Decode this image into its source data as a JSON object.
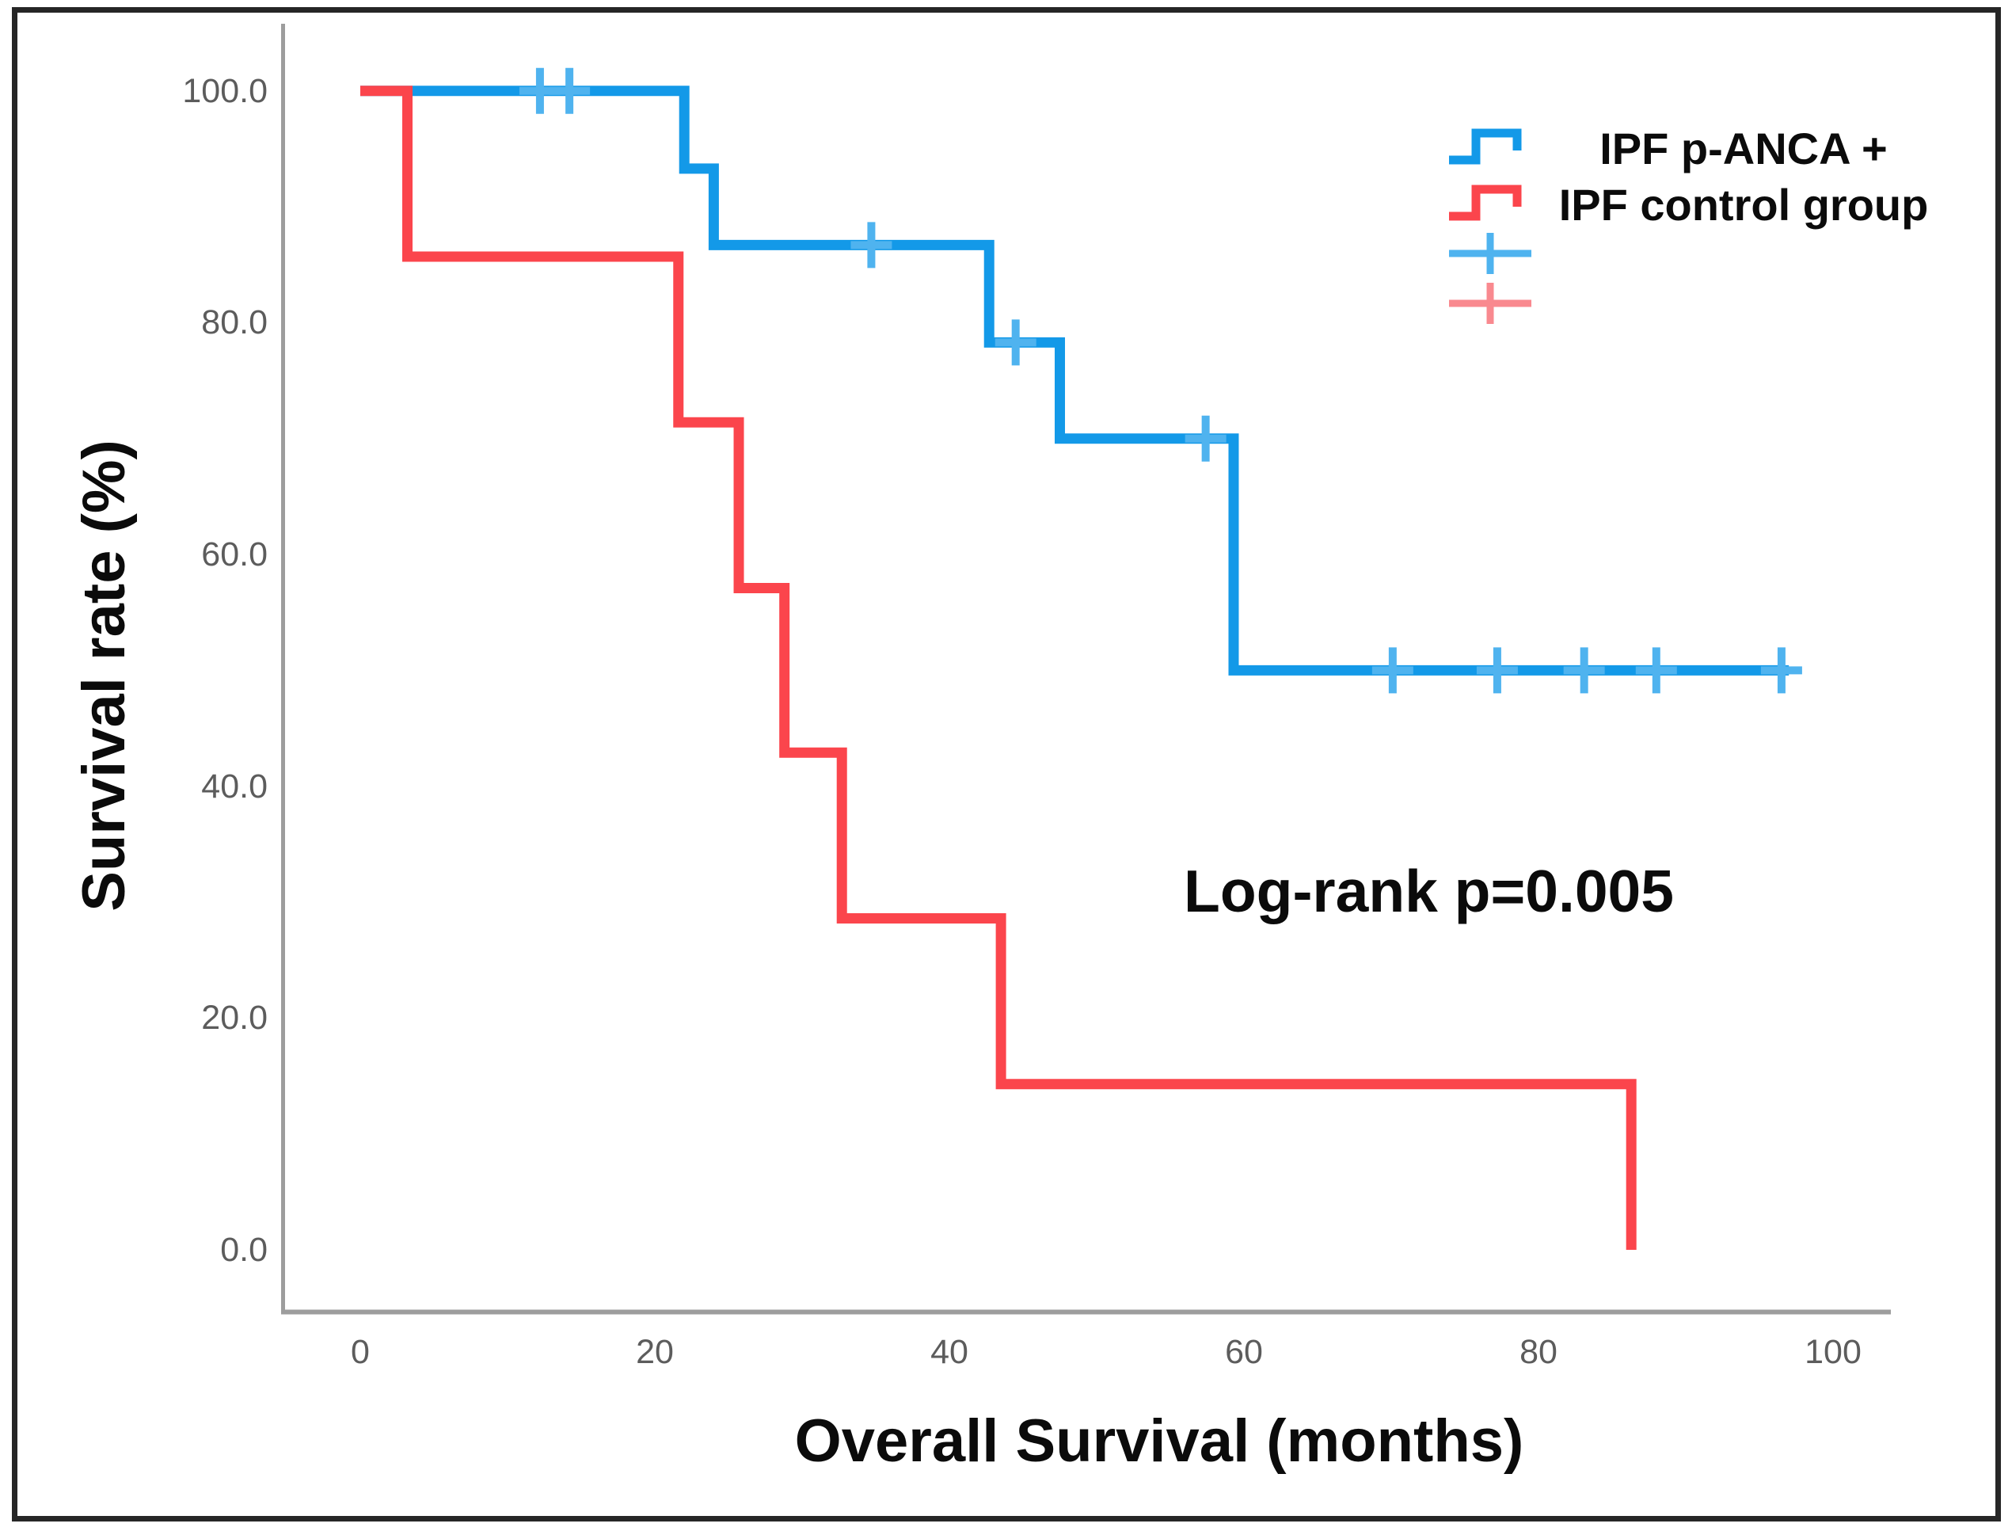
{
  "figure": {
    "background": "#ffffff",
    "border_color": "#262626",
    "axis_color": "#9d9d9d",
    "tick_label_color": "#5c5c5c",
    "text_color": "#0b0b0b"
  },
  "chart_data": {
    "type": "line",
    "subtype": "kaplan_meier_step",
    "title": "",
    "xlabel": "Overall Survival (months)",
    "ylabel": "Survival rate (%)",
    "annotation": "Log-rank p=0.005",
    "x_ticks": [
      "0",
      "20",
      "40",
      "60",
      "80",
      "100"
    ],
    "x_tick_values": [
      0,
      20,
      40,
      60,
      80,
      100
    ],
    "y_ticks": [
      "100.0",
      "80.0",
      "60.0",
      "40.0",
      "20.0",
      "0.0"
    ],
    "y_tick_values": [
      100,
      80,
      60,
      40,
      20,
      0
    ],
    "xlim": [
      0,
      105
    ],
    "ylim": [
      0,
      100
    ],
    "grid": false,
    "legend_position": "top-right",
    "series": [
      {
        "name": "IPF p-ANCA +",
        "color": "#1399E8",
        "censor_color": "#4FB3EF",
        "line_width": 13,
        "start": [
          0,
          100
        ],
        "events": [
          [
            22,
            93.3
          ],
          [
            24,
            86.7
          ],
          [
            42.7,
            78.3
          ],
          [
            47.5,
            70
          ],
          [
            59.3,
            50
          ]
        ],
        "end_month": 97,
        "censors": [
          [
            12.2,
            100
          ],
          [
            14.2,
            100
          ],
          [
            34.7,
            86.7
          ],
          [
            44.5,
            78.3
          ],
          [
            57.4,
            70
          ],
          [
            70.1,
            50
          ],
          [
            77.2,
            50
          ],
          [
            83.1,
            50
          ],
          [
            88,
            50
          ],
          [
            96.5,
            50
          ]
        ]
      },
      {
        "name": "IPF control group",
        "color": "#FB454C",
        "censor_color": "#F9898F",
        "line_width": 13,
        "start": [
          0,
          100
        ],
        "events": [
          [
            3.2,
            85.7
          ],
          [
            21.6,
            71.4
          ],
          [
            25.7,
            57.1
          ],
          [
            28.8,
            42.9
          ],
          [
            32.7,
            28.6
          ],
          [
            43.5,
            14.3
          ],
          [
            86.3,
            0
          ]
        ],
        "end_month": 86.3,
        "censors": []
      }
    ],
    "legend": {
      "entries": [
        {
          "type": "step",
          "series": 0
        },
        {
          "type": "step",
          "series": 1
        },
        {
          "type": "censor",
          "series": 0
        },
        {
          "type": "censor",
          "series": 1
        }
      ]
    }
  }
}
